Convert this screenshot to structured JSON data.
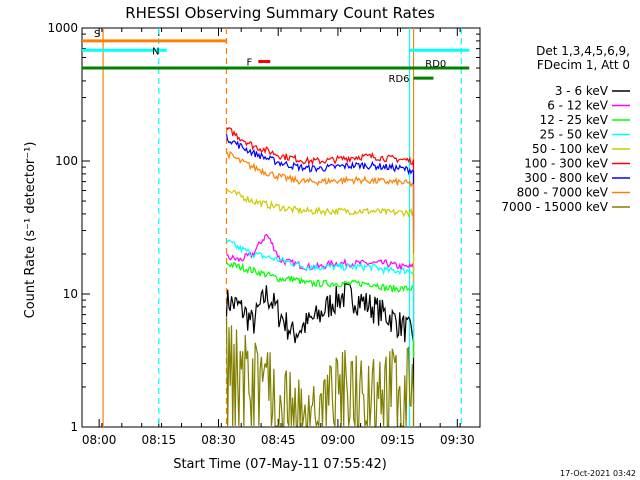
{
  "chart_data": {
    "type": "line",
    "title": "RHESSI Observing Summary Count Rates",
    "xlabel": "Start Time (07-May-11 07:55:42)",
    "ylabel": "Count Rate (s⁻¹ detector⁻¹)",
    "y_scale": "log",
    "ylim": [
      1,
      1000
    ],
    "xlim_minutes_since_0755_42": [
      0,
      100
    ],
    "x_ticks": [
      "08:00",
      "08:15",
      "08:30",
      "08:45",
      "09:00",
      "09:15",
      "09:30"
    ],
    "y_ticks": [
      "1",
      "10",
      "100",
      "1000"
    ],
    "grid": false,
    "legend_position": "right",
    "legend_header": [
      "Det 1,3,4,5,6,9,",
      "FDecim 1, Att 0"
    ],
    "series": [
      {
        "name": "3 - 6 keV",
        "color": "#000000",
        "start": "08:32",
        "end": "09:19",
        "values": [
          9,
          8,
          6,
          10,
          7,
          5,
          6,
          7,
          9,
          10,
          9,
          8,
          7,
          6,
          5
        ]
      },
      {
        "name": "6 - 12 keV",
        "color": "#ff00ff",
        "start": "08:32",
        "end": "09:19",
        "values": [
          19,
          18,
          20,
          28,
          18,
          17,
          16,
          16,
          17,
          17,
          17,
          17,
          17,
          16,
          16
        ]
      },
      {
        "name": "12 - 25 keV",
        "color": "#00ff00",
        "start": "08:32",
        "end": "09:19",
        "values": [
          17,
          16,
          15,
          14,
          13,
          13,
          12,
          12,
          12,
          12,
          12,
          12,
          11,
          11,
          11
        ]
      },
      {
        "name": "25 - 50 keV",
        "color": "#00ffff",
        "start": "08:32",
        "end": "09:19",
        "values": [
          25,
          22,
          20,
          19,
          18,
          17,
          16,
          16,
          16,
          16,
          16,
          16,
          15,
          15,
          15
        ]
      },
      {
        "name": "50 - 100 keV",
        "color": "#cccc00",
        "start": "08:32",
        "end": "09:19",
        "values": [
          60,
          55,
          50,
          47,
          45,
          43,
          42,
          42,
          42,
          42,
          42,
          42,
          41,
          41,
          41
        ]
      },
      {
        "name": "100 - 300 keV",
        "color": "#ff0000",
        "start": "08:32",
        "end": "09:19",
        "values": [
          175,
          150,
          130,
          120,
          110,
          105,
          100,
          100,
          102,
          105,
          108,
          108,
          105,
          103,
          100
        ]
      },
      {
        "name": "300 - 800 keV",
        "color": "#0000ff",
        "start": "08:32",
        "end": "09:19",
        "values": [
          150,
          130,
          115,
          105,
          97,
          92,
          88,
          88,
          90,
          92,
          93,
          92,
          90,
          88,
          85
        ]
      },
      {
        "name": "800 - 7000 keV",
        "color": "#ff8000",
        "start": "08:32",
        "end": "09:19",
        "values": [
          115,
          100,
          90,
          82,
          76,
          72,
          70,
          70,
          71,
          72,
          72,
          71,
          70,
          69,
          67
        ]
      },
      {
        "name": "7000 - 15000 keV",
        "color": "#808000",
        "start": "08:32",
        "end": "09:19",
        "values": [
          4.5,
          3.5,
          3,
          2.5,
          2,
          1.5,
          1.5,
          1.5,
          2,
          2.5,
          2.5,
          2.5,
          2.5,
          2.5,
          2.5
        ]
      }
    ],
    "flag_bars": [
      {
        "label": "S",
        "color": "#ff8000",
        "start": "07:55",
        "end": "08:32",
        "value": 800
      },
      {
        "label": "N",
        "color": "#00ffff",
        "start": "07:55",
        "end": "08:17",
        "value": 680
      },
      {
        "label": "F",
        "color": "#ff0000",
        "start": "08:40",
        "end": "08:43",
        "value": 560
      },
      {
        "label": "RD0",
        "color": "#008000",
        "start": "07:55",
        "end": "09:33",
        "value": 500
      },
      {
        "label": "RD6",
        "color": "#008000",
        "start": "09:19",
        "end": "09:24",
        "value": 420
      },
      {
        "label": "",
        "color": "#00ffff",
        "start": "09:18",
        "end": "09:33",
        "value": 680
      }
    ],
    "vertical_markers": [
      {
        "time": "08:01",
        "color": "#ff8000",
        "style": "solid"
      },
      {
        "time": "08:15",
        "color": "#00ffff",
        "style": "dashed"
      },
      {
        "time": "08:32",
        "color": "#ff8000",
        "style": "dashed"
      },
      {
        "time": "09:18",
        "color": "#00ffff",
        "style": "solid"
      },
      {
        "time": "09:19",
        "color": "#ff8000",
        "style": "solid"
      },
      {
        "time": "09:31",
        "color": "#00ffff",
        "style": "dashed"
      }
    ]
  },
  "footer_timestamp": "17-Oct-2021 03:42"
}
